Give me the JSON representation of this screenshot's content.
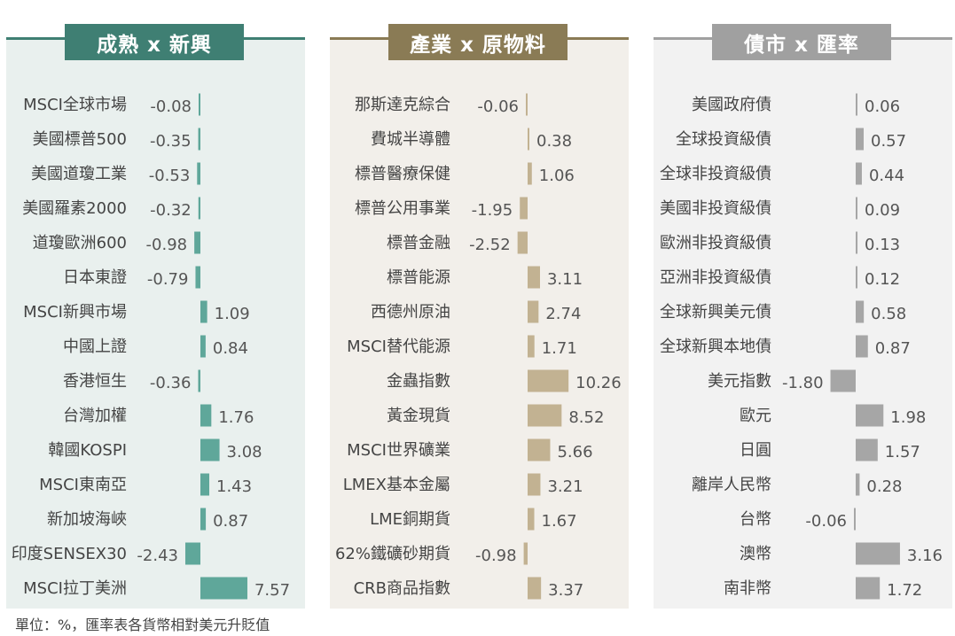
{
  "chart_data": [
    {
      "type": "bar",
      "title": "成熟 x 新興",
      "categories": [
        "MSCI全球市場",
        "美國標普500",
        "美國道瓊工業",
        "美國羅素2000",
        "道瓊歐洲600",
        "日本東證",
        "MSCI新興市場",
        "中國上證",
        "香港恒生",
        "台灣加權",
        "韓國KOSPI",
        "MSCI東南亞",
        "新加坡海峽",
        "印度SENSEX30",
        "MSCI拉丁美洲"
      ],
      "values": [
        -0.08,
        -0.35,
        -0.53,
        -0.32,
        -0.98,
        -0.79,
        1.09,
        0.84,
        -0.36,
        1.76,
        3.08,
        1.43,
        0.87,
        -2.43,
        7.57
      ],
      "colors": {
        "accent": "#3f7f73",
        "bar": "#5fa79a",
        "background": "#e9f0ee"
      }
    },
    {
      "type": "bar",
      "title": "產業 x 原物料",
      "categories": [
        "那斯達克綜合",
        "費城半導體",
        "標普醫療保健",
        "標普公用事業",
        "標普金融",
        "標普能源",
        "西德州原油",
        "MSCI替代能源",
        "金蟲指數",
        "黃金現貨",
        "MSCI世界礦業",
        "LMEX基本金屬",
        "LME銅期貨",
        "62%鐵礦砂期貨",
        "CRB商品指數"
      ],
      "values": [
        -0.06,
        0.38,
        1.06,
        -1.95,
        -2.52,
        3.11,
        2.74,
        1.71,
        10.26,
        8.52,
        5.66,
        3.21,
        1.67,
        -0.98,
        3.37
      ],
      "colors": {
        "accent": "#8a7b55",
        "bar": "#c2b292",
        "background": "#f2efea"
      }
    },
    {
      "type": "bar",
      "title": "債市 x 匯率",
      "categories": [
        "美國政府債",
        "全球投資級債",
        "全球非投資級債",
        "美國非投資級債",
        "歐洲非投資級債",
        "亞洲非投資級債",
        "全球新興美元債",
        "全球新興本地債",
        "美元指數",
        "歐元",
        "日圓",
        "離岸人民幣",
        "台幣",
        "澳幣",
        "南非幣"
      ],
      "values": [
        0.06,
        0.57,
        0.44,
        0.09,
        0.13,
        0.12,
        0.58,
        0.87,
        -1.8,
        1.98,
        1.57,
        0.28,
        -0.06,
        3.16,
        1.72
      ],
      "colors": {
        "accent": "#a0a0a0",
        "bar": "#a6a6a6",
        "background": "#f2f2f2"
      }
    }
  ],
  "footnote": "單位：%，匯率表各貨幣相對美元升貶值"
}
